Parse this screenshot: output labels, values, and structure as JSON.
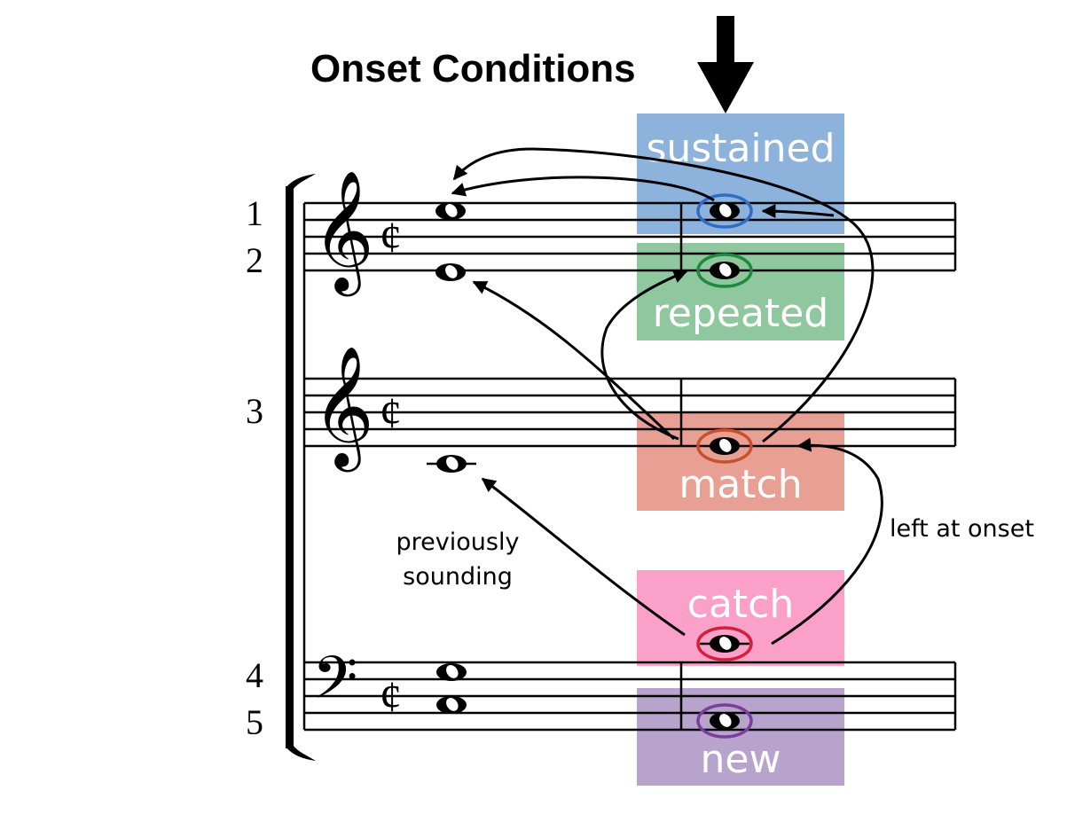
{
  "title": "Onset Conditions",
  "voices": [
    "1",
    "2",
    "3",
    "4",
    "5"
  ],
  "clefs": {
    "treble": "𝄞",
    "bass": "𝄢",
    "cut_time": "¢"
  },
  "conditions": [
    {
      "label": "sustained",
      "color": "#8DB3DD",
      "ring": "#2E6DC2"
    },
    {
      "label": "repeated",
      "color": "#8FC79E",
      "ring": "#1E8A3C"
    },
    {
      "label": "match",
      "color": "#E8A095",
      "ring": "#C8502A"
    },
    {
      "label": "catch",
      "color": "#FBA0C8",
      "ring": "#D3203A"
    },
    {
      "label": "new",
      "color": "#B7A3CC",
      "ring": "#7A3E9E"
    }
  ],
  "annotations": {
    "previously_line1": "previously",
    "previously_line2": "sounding",
    "left_at_onset": "left at onset"
  }
}
